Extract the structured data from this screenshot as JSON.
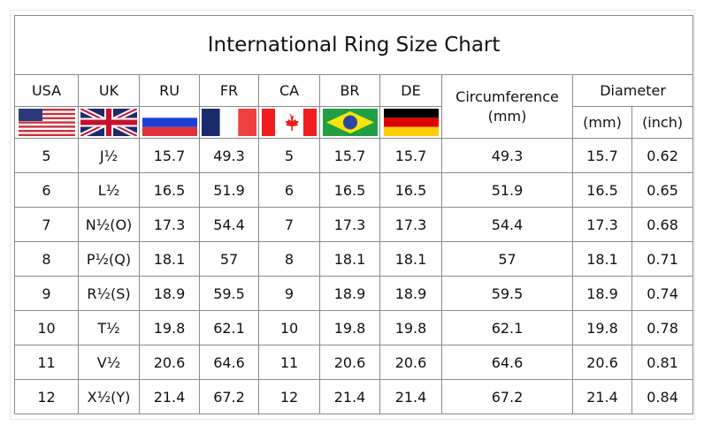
{
  "title": "International Ring Size Chart",
  "headers": {
    "usa": "USA",
    "uk": "UK",
    "ru": "RU",
    "fr": "FR",
    "ca": "CA",
    "br": "BR",
    "de": "DE",
    "circumference": "Circumference\n(mm)",
    "diameter": "Diameter",
    "diameter_mm": "(mm)",
    "diameter_inch": "(inch)"
  },
  "flags": [
    "usa-flag",
    "uk-flag",
    "russia-flag",
    "france-flag",
    "canada-flag",
    "brazil-flag",
    "germany-flag"
  ],
  "rows": [
    [
      "5",
      "J½",
      "15.7",
      "49.3",
      "5",
      "15.7",
      "15.7",
      "49.3",
      "15.7",
      "0.62"
    ],
    [
      "6",
      "L½",
      "16.5",
      "51.9",
      "6",
      "16.5",
      "16.5",
      "51.9",
      "16.5",
      "0.65"
    ],
    [
      "7",
      "N½(O)",
      "17.3",
      "54.4",
      "7",
      "17.3",
      "17.3",
      "54.4",
      "17.3",
      "0.68"
    ],
    [
      "8",
      "P½(Q)",
      "18.1",
      "57",
      "8",
      "18.1",
      "18.1",
      "57",
      "18.1",
      "0.71"
    ],
    [
      "9",
      "R½(S)",
      "18.9",
      "59.5",
      "9",
      "18.9",
      "18.9",
      "59.5",
      "18.9",
      "0.74"
    ],
    [
      "10",
      "T½",
      "19.8",
      "62.1",
      "10",
      "19.8",
      "19.8",
      "62.1",
      "19.8",
      "0.78"
    ],
    [
      "11",
      "V½",
      "20.6",
      "64.6",
      "11",
      "20.6",
      "20.6",
      "64.6",
      "20.6",
      "0.81"
    ],
    [
      "12",
      "X½(Y)",
      "21.4",
      "67.2",
      "12",
      "21.4",
      "21.4",
      "67.2",
      "21.4",
      "0.84"
    ]
  ]
}
